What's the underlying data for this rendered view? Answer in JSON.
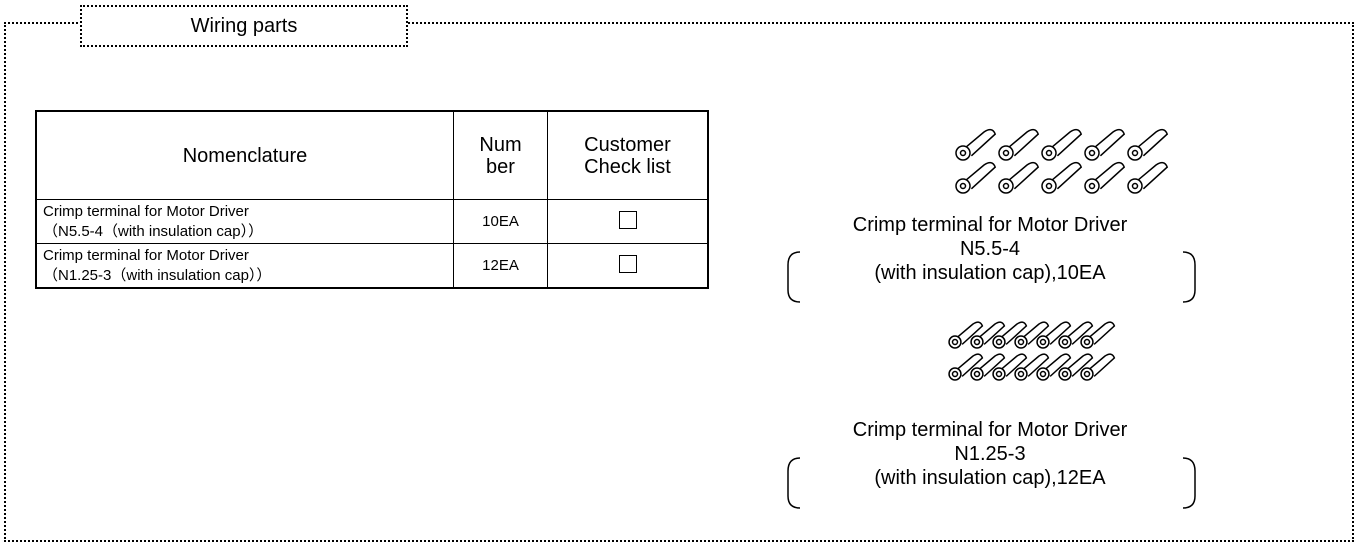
{
  "header": {
    "title": "Wiring parts"
  },
  "table": {
    "columns": [
      "Nomenclature",
      "Num\nber",
      "Customer\nCheck list"
    ],
    "rows": [
      {
        "name": [
          "Crimp terminal for Motor Driver",
          "（N5.5-4（with insulation cap））"
        ],
        "number": "10EA"
      },
      {
        "name": [
          "Crimp terminal for Motor Driver",
          "（N1.25-3（with insulation cap））"
        ],
        "number": "12EA"
      }
    ]
  },
  "illustrations": [
    {
      "lines": [
        "Crimp terminal for Motor Driver",
        "N5.5-4",
        "(with insulation cap),10EA"
      ]
    },
    {
      "lines": [
        "Crimp terminal for Motor Driver",
        "N1.25-3",
        "(with insulation cap),12EA"
      ]
    }
  ]
}
